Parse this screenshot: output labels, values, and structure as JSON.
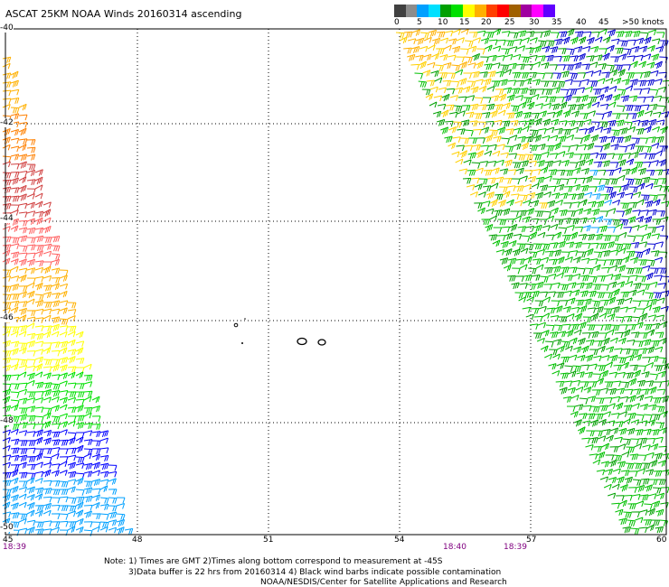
{
  "title": "ASCAT 25KM NOAA Winds 20160314 ascending",
  "legend": {
    "colors": [
      "#404040",
      "#8c8c8c",
      "#00a0ff",
      "#00e0ff",
      "#00a000",
      "#00e000",
      "#ffff00",
      "#ffb000",
      "#ff4000",
      "#ff0000",
      "#a06000",
      "#a000a0",
      "#ff00ff",
      "#6000ff"
    ],
    "labels": [
      "0",
      "5",
      "10",
      "15",
      "20",
      "25",
      "30",
      "35",
      "40",
      "45",
      ">50 knots"
    ]
  },
  "axes": {
    "lat_labels": [
      "-40",
      "-42",
      "-44",
      "-46",
      "-48",
      "-50"
    ],
    "lon_labels": [
      "45",
      "48",
      "51",
      "54",
      "57",
      "60"
    ]
  },
  "times": [
    "18:39",
    "18:40",
    "18:39"
  ],
  "notes": [
    "Note: 1) Times are GMT 2)Times along bottom correspond to measurement at -45S",
    "3)Data buffer is 22 hrs from 20160314 4) Black wind barbs indicate possible contamination",
    "NOAA/NESDIS/Center for Satellite Applications and Research"
  ],
  "map": {
    "lon_range": [
      45,
      60
    ],
    "lat_range": [
      -40,
      -50
    ],
    "swaths": [
      {
        "name": "west-swath",
        "color_bands": [
          "#ffb000",
          "#ff8000",
          "#d04040",
          "#ff6060",
          "#ffb000",
          "#ffff00",
          "#00e000",
          "#0000ff",
          "#00a0ff"
        ]
      },
      {
        "name": "east-swath",
        "color_bands": [
          "#ffff00",
          "#00e000",
          "#0000ff",
          "#00a0ff",
          "#00a000"
        ]
      }
    ]
  }
}
